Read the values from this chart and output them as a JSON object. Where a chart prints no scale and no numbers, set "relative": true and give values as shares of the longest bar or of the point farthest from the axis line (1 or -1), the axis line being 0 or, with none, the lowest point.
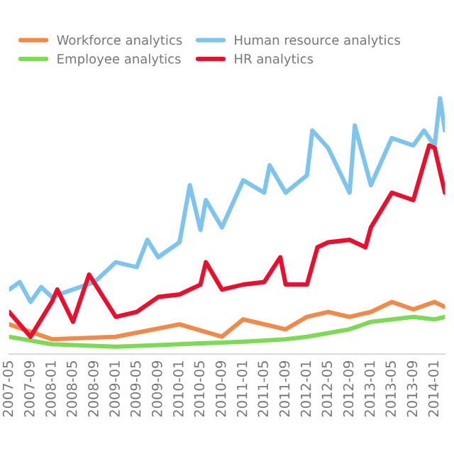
{
  "chart_data": {
    "type": "line",
    "relative": true,
    "legend": "top",
    "grid": false,
    "xlim": [
      "2007-05",
      "2014-03"
    ],
    "xticks": [
      "2007-05",
      "2007-09",
      "2008-01",
      "2008-05",
      "2008-09",
      "2009-01",
      "2009-05",
      "2009-09",
      "2010-01",
      "2010-05",
      "2010-09",
      "2011-01",
      "2011-05",
      "2011-09",
      "2012-01",
      "2012-05",
      "2012-09",
      "2013-01",
      "2013-05",
      "2013-09",
      "2014-01"
    ],
    "series": [
      {
        "name": "Workforce analytics",
        "color": "#f08a4b",
        "x": [
          "2007-05",
          "2008-01",
          "2009-01",
          "2010-01",
          "2010-09",
          "2011-01",
          "2011-09",
          "2012-01",
          "2012-05",
          "2012-09",
          "2013-01",
          "2013-05",
          "2013-09",
          "2014-01",
          "2014-03"
        ],
        "values": [
          0.09,
          0.03,
          0.04,
          0.09,
          0.04,
          0.11,
          0.07,
          0.12,
          0.14,
          0.12,
          0.14,
          0.18,
          0.15,
          0.18,
          0.16
        ]
      },
      {
        "name": "Human resource analytics",
        "color": "#7fc4ec",
        "x": [
          "2007-05",
          "2007-07",
          "2007-09",
          "2007-11",
          "2008-01",
          "2008-05",
          "2008-09",
          "2009-01",
          "2009-05",
          "2009-07",
          "2009-09",
          "2010-01",
          "2010-03",
          "2010-05",
          "2010-06",
          "2010-09",
          "2011-01",
          "2011-05",
          "2011-06",
          "2011-09",
          "2012-01",
          "2012-02",
          "2012-05",
          "2012-09",
          "2012-10",
          "2013-01",
          "2013-05",
          "2013-09",
          "2013-11",
          "2014-01",
          "2014-02",
          "2014-03"
        ],
        "values": [
          0.23,
          0.26,
          0.18,
          0.24,
          0.2,
          0.23,
          0.26,
          0.34,
          0.32,
          0.43,
          0.36,
          0.42,
          0.65,
          0.47,
          0.59,
          0.48,
          0.67,
          0.62,
          0.73,
          0.62,
          0.69,
          0.87,
          0.8,
          0.62,
          0.89,
          0.65,
          0.84,
          0.81,
          0.87,
          0.81,
          1.0,
          0.87
        ]
      },
      {
        "name": "Employee analytics",
        "color": "#7ed957",
        "x": [
          "2007-05",
          "2008-01",
          "2009-01",
          "2010-01",
          "2011-01",
          "2011-09",
          "2012-01",
          "2012-09",
          "2013-01",
          "2013-09",
          "2014-01",
          "2014-03"
        ],
        "values": [
          0.04,
          0.01,
          0.0,
          0.01,
          0.02,
          0.03,
          0.04,
          0.07,
          0.1,
          0.12,
          0.11,
          0.12
        ]
      },
      {
        "name": "HR analytics",
        "color": "#e8102e",
        "x": [
          "2007-05",
          "2007-09",
          "2008-01",
          "2008-02",
          "2008-05",
          "2008-08",
          "2009-01",
          "2009-05",
          "2009-09",
          "2010-01",
          "2010-05",
          "2010-06",
          "2010-09",
          "2011-01",
          "2011-05",
          "2011-08",
          "2011-09",
          "2012-01",
          "2012-03",
          "2012-05",
          "2012-09",
          "2012-12",
          "2013-01",
          "2013-05",
          "2013-09",
          "2013-12",
          "2014-01",
          "2014-03"
        ],
        "values": [
          0.14,
          0.04,
          0.18,
          0.23,
          0.1,
          0.29,
          0.12,
          0.14,
          0.2,
          0.21,
          0.25,
          0.34,
          0.23,
          0.25,
          0.26,
          0.36,
          0.25,
          0.25,
          0.4,
          0.42,
          0.43,
          0.4,
          0.48,
          0.62,
          0.59,
          0.81,
          0.8,
          0.62
        ]
      }
    ]
  }
}
